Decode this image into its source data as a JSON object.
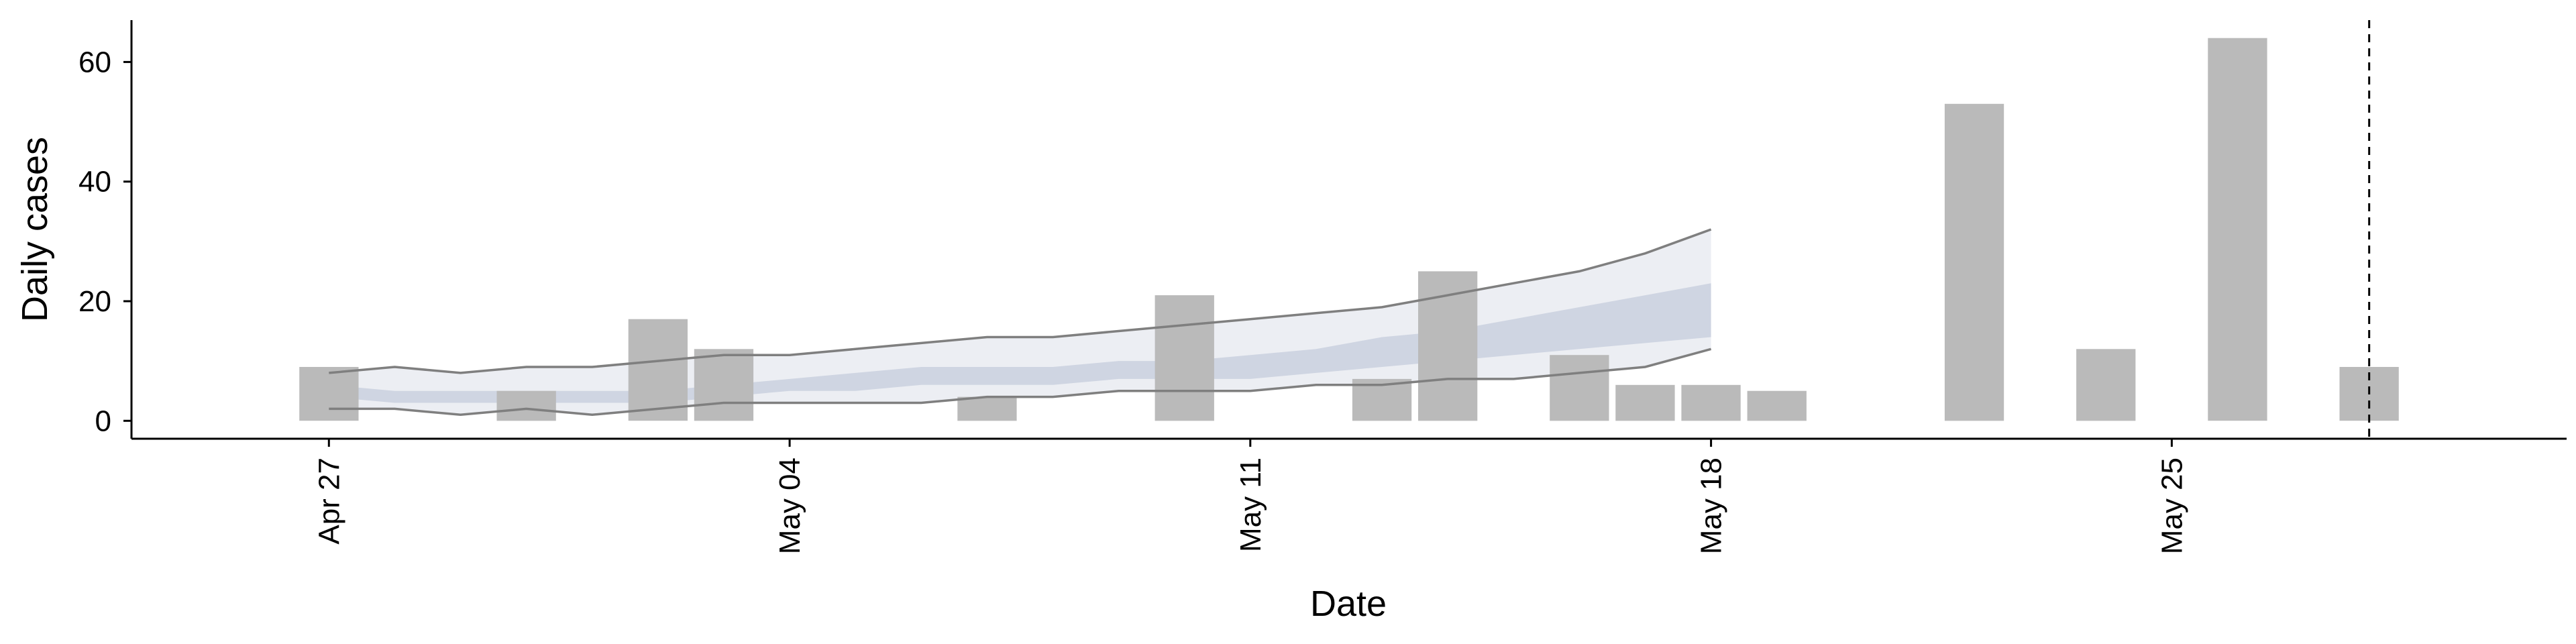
{
  "chart_data": {
    "type": "bar",
    "xlabel": "Date",
    "ylabel": "Daily cases",
    "x_axis_type": "date",
    "xlim": [
      "2020-04-24",
      "2020-05-31"
    ],
    "ylim": [
      -3,
      67
    ],
    "grid": false,
    "x_ticks": [
      {
        "date": "2020-04-27",
        "label": "Apr 27"
      },
      {
        "date": "2020-05-04",
        "label": "May 04"
      },
      {
        "date": "2020-05-11",
        "label": "May 11"
      },
      {
        "date": "2020-05-18",
        "label": "May 18"
      },
      {
        "date": "2020-05-25",
        "label": "May 25"
      }
    ],
    "y_ticks": [
      0,
      20,
      40,
      60
    ],
    "bars": {
      "color": "#bababa",
      "points": [
        {
          "date": "2020-04-27",
          "value": 9
        },
        {
          "date": "2020-04-30",
          "value": 5
        },
        {
          "date": "2020-05-02",
          "value": 17
        },
        {
          "date": "2020-05-03",
          "value": 12
        },
        {
          "date": "2020-05-07",
          "value": 4
        },
        {
          "date": "2020-05-10",
          "value": 21
        },
        {
          "date": "2020-05-13",
          "value": 7
        },
        {
          "date": "2020-05-14",
          "value": 25
        },
        {
          "date": "2020-05-16",
          "value": 11
        },
        {
          "date": "2020-05-17",
          "value": 6
        },
        {
          "date": "2020-05-18",
          "value": 6
        },
        {
          "date": "2020-05-19",
          "value": 5
        },
        {
          "date": "2020-05-22",
          "value": 53
        },
        {
          "date": "2020-05-24",
          "value": 12
        },
        {
          "date": "2020-05-26",
          "value": 64
        },
        {
          "date": "2020-05-28",
          "value": 9
        }
      ]
    },
    "forecast": {
      "dates": [
        "2020-04-27",
        "2020-04-28",
        "2020-04-29",
        "2020-04-30",
        "2020-05-01",
        "2020-05-02",
        "2020-05-03",
        "2020-05-04",
        "2020-05-05",
        "2020-05-06",
        "2020-05-07",
        "2020-05-08",
        "2020-05-09",
        "2020-05-10",
        "2020-05-11",
        "2020-05-12",
        "2020-05-13",
        "2020-05-14",
        "2020-05-15",
        "2020-05-16",
        "2020-05-17",
        "2020-05-18"
      ],
      "outer_upper": [
        8,
        9,
        8,
        9,
        9,
        10,
        11,
        11,
        12,
        13,
        14,
        14,
        15,
        16,
        17,
        18,
        19,
        21,
        23,
        25,
        28,
        32
      ],
      "outer_lower": [
        2,
        2,
        1,
        2,
        1,
        2,
        3,
        3,
        3,
        3,
        4,
        4,
        5,
        5,
        5,
        6,
        6,
        7,
        7,
        8,
        9,
        12
      ],
      "inner_upper": [
        6,
        5,
        5,
        5,
        5,
        5,
        6,
        7,
        8,
        9,
        9,
        9,
        10,
        10,
        11,
        12,
        14,
        15,
        17,
        19,
        21,
        23
      ],
      "inner_lower": [
        4,
        3,
        3,
        3,
        3,
        3,
        4,
        5,
        5,
        6,
        6,
        6,
        7,
        7,
        7,
        8,
        9,
        10,
        11,
        12,
        13,
        14
      ],
      "colors": {
        "outer_band": "#eceef3",
        "inner_band": "#cfd5e2",
        "outer_line": "#7f7f7f",
        "dashed_line": "#000000"
      }
    },
    "vline_date": "2020-05-28"
  }
}
